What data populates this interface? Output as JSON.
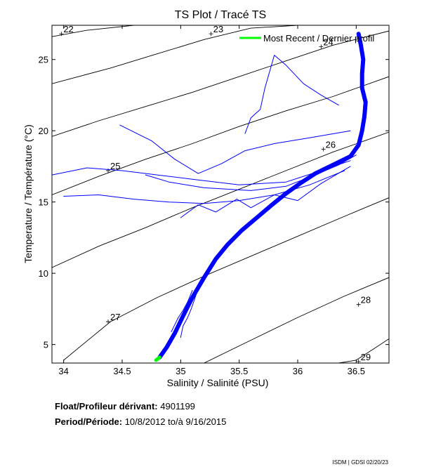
{
  "chart_data": {
    "type": "line",
    "title": "TS Plot / Tracé TS",
    "xlabel": "Salinity / Salinité (PSU)",
    "ylabel": "Temperature / Température (°C)",
    "xlim": [
      33.9,
      36.78
    ],
    "ylim": [
      3.7,
      27.4
    ],
    "xticks": [
      "34",
      "34.5",
      "35",
      "35.5",
      "36",
      "36.5"
    ],
    "xtick_values": [
      34,
      34.5,
      35,
      35.5,
      36,
      36.5
    ],
    "yticks": [
      "5",
      "10",
      "15",
      "20",
      "25"
    ],
    "ytick_values": [
      5,
      10,
      15,
      20,
      25
    ],
    "grid": false,
    "legend": [
      {
        "label": "Most Recent / Dernier profil",
        "color": "#00ff00",
        "position": "top-right"
      }
    ],
    "density_isolines": [
      {
        "label": "22",
        "x": [
          33.9,
          34.2,
          34.6,
          35.0,
          35.4,
          35.8,
          36.2,
          36.6,
          36.78
        ],
        "y": [
          26.6,
          27.05,
          27.4,
          27.6,
          27.7,
          27.7,
          27.7,
          27.7,
          27.7
        ]
      },
      {
        "label": "23",
        "x": [
          33.9,
          34.4,
          34.8,
          35.2,
          35.6,
          36.0,
          36.4,
          36.78
        ],
        "y": [
          23.3,
          24.4,
          25.4,
          26.4,
          27.2,
          27.4,
          27.4,
          27.4
        ]
      },
      {
        "label": "24",
        "x": [
          33.9,
          34.3,
          34.7,
          35.1,
          35.5,
          35.9,
          36.3,
          36.78
        ],
        "y": [
          19.6,
          20.7,
          21.7,
          22.7,
          23.8,
          24.9,
          26.0,
          27.0
        ]
      },
      {
        "label": "25",
        "x": [
          33.9,
          34.3,
          34.7,
          35.1,
          35.5,
          35.9,
          36.3,
          36.78
        ],
        "y": [
          15.5,
          16.8,
          18.0,
          19.1,
          20.3,
          21.4,
          22.4,
          23.8
        ]
      },
      {
        "label": "26",
        "x": [
          33.9,
          34.3,
          34.7,
          35.1,
          35.5,
          35.9,
          36.3,
          36.78
        ],
        "y": [
          10.4,
          11.9,
          13.2,
          14.6,
          15.9,
          17.2,
          18.5,
          19.9
        ]
      },
      {
        "label": "27",
        "x": [
          34.0,
          34.4,
          34.8,
          35.2,
          35.6,
          36.0,
          36.4,
          36.78
        ],
        "y": [
          3.9,
          6.6,
          8.3,
          9.8,
          11.2,
          12.6,
          14.0,
          15.3
        ]
      },
      {
        "label": "28",
        "x": [
          35.2,
          35.6,
          36.0,
          36.4,
          36.78
        ],
        "y": [
          3.7,
          5.3,
          6.9,
          8.4,
          9.7
        ]
      },
      {
        "label": "29",
        "x": [
          36.35,
          36.5,
          36.65,
          36.78
        ],
        "y": [
          3.7,
          3.9,
          4.7,
          5.4
        ]
      }
    ],
    "isoline_labels": [
      {
        "text": "22",
        "x": 33.98,
        "y": 27.1
      },
      {
        "text": "23",
        "x": 35.26,
        "y": 27.1
      },
      {
        "text": "24",
        "x": 36.2,
        "y": 26.2
      },
      {
        "text": "25",
        "x": 34.38,
        "y": 17.5
      },
      {
        "text": "26",
        "x": 36.22,
        "y": 19.0
      },
      {
        "text": "27",
        "x": 34.38,
        "y": 6.9
      },
      {
        "text": "28",
        "x": 36.52,
        "y": 8.1
      },
      {
        "text": "29",
        "x": 36.52,
        "y": 4.1
      }
    ],
    "series": [
      {
        "name": "profiles_main",
        "color": "#0000ff",
        "x": [
          34.82,
          34.88,
          34.95,
          35.02,
          35.1,
          35.2,
          35.3,
          35.4,
          35.52,
          35.65,
          35.78,
          35.9,
          36.02,
          36.15,
          36.3,
          36.45,
          36.52,
          36.55,
          36.57,
          36.58,
          36.55,
          36.55,
          36.56,
          36.54,
          36.52
        ],
        "y": [
          4.1,
          4.8,
          5.8,
          7.0,
          8.3,
          9.7,
          11.0,
          12.0,
          13.0,
          13.9,
          14.8,
          15.6,
          16.3,
          17.0,
          17.6,
          18.2,
          19.0,
          20.0,
          21.0,
          22.0,
          23.0,
          24.0,
          25.0,
          26.0,
          26.8
        ]
      },
      {
        "name": "profile_b",
        "color": "#0000ff",
        "x": [
          34.7,
          34.9,
          35.2,
          35.6,
          35.9,
          36.15,
          36.35,
          36.5
        ],
        "y": [
          16.9,
          16.4,
          16.0,
          15.8,
          16.1,
          16.9,
          17.6,
          18.3
        ]
      },
      {
        "name": "profile_c",
        "color": "#0000ff",
        "x": [
          33.9,
          34.2,
          34.5,
          34.8,
          35.1,
          35.5,
          35.9,
          36.2,
          36.45
        ],
        "y": [
          16.9,
          17.4,
          17.2,
          16.9,
          16.6,
          16.2,
          16.4,
          17.2,
          17.9
        ]
      },
      {
        "name": "profile_d",
        "color": "#0000ff",
        "x": [
          34.0,
          34.3,
          34.6,
          34.9,
          35.2,
          35.5,
          35.8,
          36.1,
          36.4
        ],
        "y": [
          15.4,
          15.5,
          15.2,
          15.0,
          14.9,
          15.1,
          15.5,
          16.2,
          17.2
        ]
      },
      {
        "name": "profile_e",
        "color": "#0000ff",
        "x": [
          34.48,
          34.75,
          34.95,
          35.15,
          35.35,
          35.55,
          35.8,
          36.1,
          36.45
        ],
        "y": [
          20.4,
          19.3,
          18.0,
          17.0,
          17.7,
          18.6,
          19.1,
          19.5,
          20.0
        ]
      },
      {
        "name": "profile_f",
        "color": "#0000ff",
        "x": [
          35.0,
          35.15,
          35.3,
          35.48,
          35.6,
          35.8,
          36.0,
          36.2,
          36.45
        ],
        "y": [
          13.9,
          14.8,
          14.3,
          15.2,
          14.6,
          15.5,
          15.1,
          16.3,
          17.5
        ]
      },
      {
        "name": "profile_g",
        "color": "#0000ff",
        "x": [
          35.55,
          35.6,
          35.68,
          35.72,
          35.8,
          35.9,
          36.05,
          36.2,
          36.35
        ],
        "y": [
          19.8,
          20.9,
          21.5,
          23.0,
          25.3,
          24.6,
          23.3,
          22.5,
          21.8
        ]
      },
      {
        "name": "profile_h",
        "color": "#0000ff",
        "x": [
          35.0,
          35.02,
          35.06,
          35.09,
          35.12,
          35.16
        ],
        "y": [
          5.5,
          6.3,
          6.9,
          7.5,
          8.2,
          9.2
        ]
      },
      {
        "name": "profile_i",
        "color": "#0000ff",
        "x": [
          34.92,
          34.95,
          34.98,
          35.02,
          35.06,
          35.1
        ],
        "y": [
          5.9,
          6.4,
          6.9,
          7.4,
          8.0,
          8.8
        ]
      },
      {
        "name": "most_recent",
        "color": "#00ff00",
        "x": [
          34.79,
          34.82
        ],
        "y": [
          3.9,
          4.1
        ]
      }
    ]
  },
  "info": {
    "float_label": "Float/Profileur dérivant:",
    "float_value": "4901199",
    "period_label": "Period/Période:",
    "period_start": "10/8/2012",
    "period_to": "to/à",
    "period_end": "9/16/2015"
  },
  "credit": "ISDM | GDSI 02/20/23"
}
